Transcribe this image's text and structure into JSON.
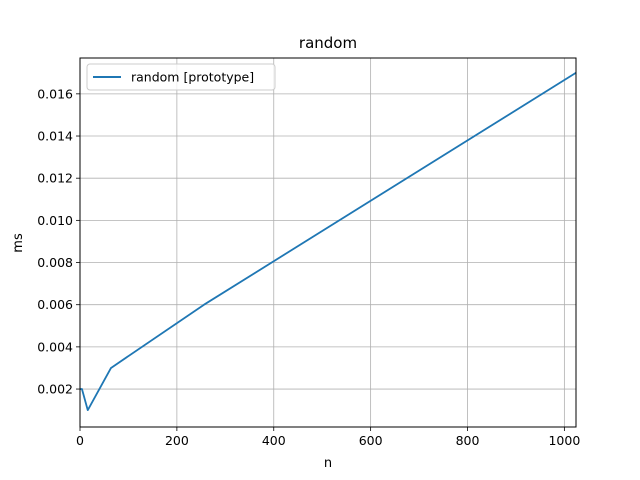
{
  "chart_data": {
    "type": "line",
    "title": "random",
    "xlabel": "n",
    "ylabel": "ms",
    "xlim": [
      0,
      1024
    ],
    "ylim": [
      0.0002,
      0.0177
    ],
    "xticks": [
      0,
      200,
      400,
      600,
      800,
      1000
    ],
    "xtick_labels": [
      "0",
      "200",
      "400",
      "600",
      "800",
      "1000"
    ],
    "yticks": [
      0.002,
      0.004,
      0.006,
      0.008,
      0.01,
      0.012,
      0.014,
      0.016
    ],
    "ytick_labels": [
      "0.002",
      "0.004",
      "0.006",
      "0.008",
      "0.010",
      "0.012",
      "0.014",
      "0.016"
    ],
    "grid": true,
    "legend_position": "top-left",
    "series": [
      {
        "name": "random [prototype]",
        "color": "#1f77b4",
        "x": [
          1,
          4,
          16,
          64,
          256,
          1024
        ],
        "y": [
          0.002,
          0.002,
          0.001,
          0.003,
          0.006,
          0.017
        ]
      }
    ]
  }
}
